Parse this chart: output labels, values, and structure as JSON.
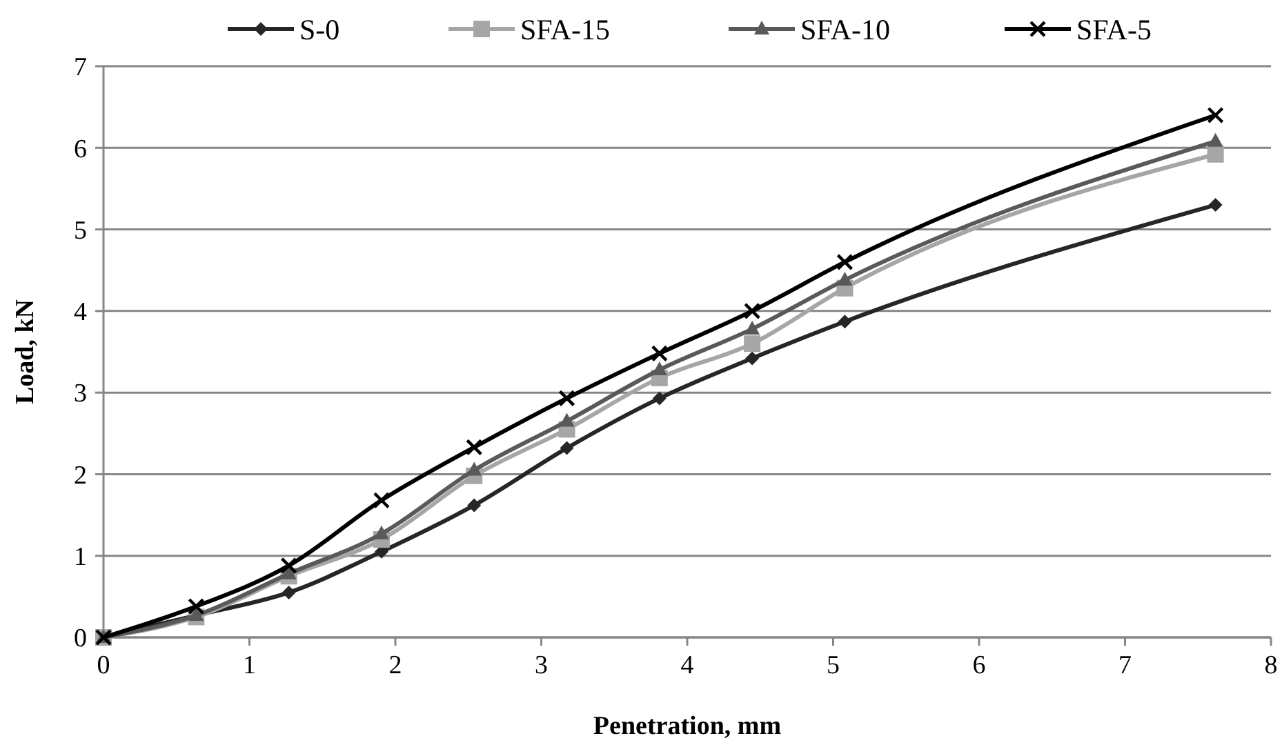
{
  "chart_data": {
    "type": "line",
    "xlabel": "Penetration, mm",
    "ylabel": "Load, kN",
    "x": [
      0,
      0.635,
      1.27,
      1.905,
      2.54,
      3.175,
      3.81,
      4.445,
      5.08,
      7.62
    ],
    "series": [
      {
        "name": "S-0",
        "color": "#262626",
        "marker": "diamond",
        "values": [
          0,
          0.27,
          0.55,
          1.05,
          1.62,
          2.32,
          2.93,
          3.42,
          3.87,
          5.3
        ]
      },
      {
        "name": "SFA-15",
        "color": "#a6a6a6",
        "marker": "square",
        "values": [
          0,
          0.25,
          0.75,
          1.2,
          1.98,
          2.55,
          3.18,
          3.6,
          4.28,
          5.92
        ]
      },
      {
        "name": "SFA-10",
        "color": "#595959",
        "marker": "triangle",
        "values": [
          0,
          0.27,
          0.78,
          1.27,
          2.05,
          2.65,
          3.28,
          3.78,
          4.38,
          6.08
        ]
      },
      {
        "name": "SFA-5",
        "color": "#000000",
        "marker": "cross",
        "values": [
          0,
          0.38,
          0.88,
          1.68,
          2.33,
          2.93,
          3.48,
          4.0,
          4.6,
          6.4
        ]
      }
    ],
    "xlim": [
      0,
      8
    ],
    "xticks": [
      0,
      1,
      2,
      3,
      4,
      5,
      6,
      7,
      8
    ],
    "ylim": [
      0,
      7
    ],
    "yticks": [
      0,
      1,
      2,
      3,
      4,
      5,
      6,
      7
    ],
    "grid": "y",
    "legend": "top"
  }
}
